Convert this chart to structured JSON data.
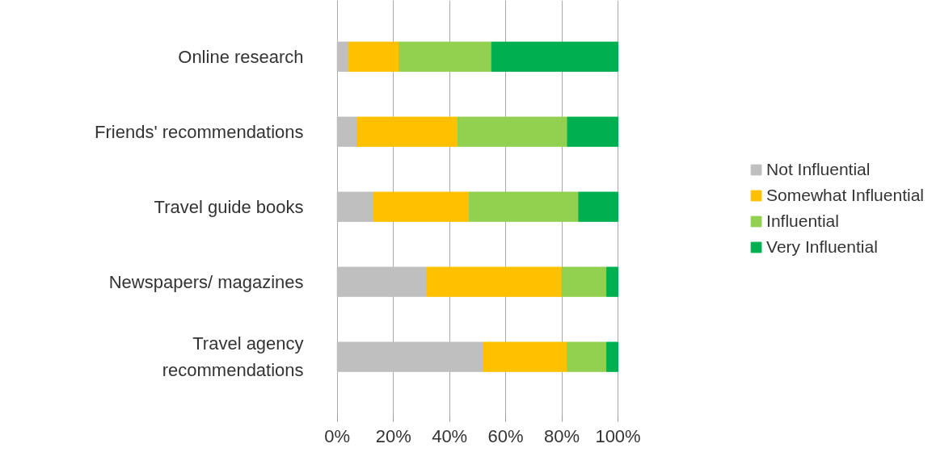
{
  "chart_data": {
    "type": "bar",
    "orientation": "horizontal",
    "stacked": true,
    "categories": [
      "Online research",
      "Friends' recommendations",
      "Travel guide books",
      "Newspapers/ magazines",
      "Travel agency recommendations"
    ],
    "series": [
      {
        "name": "Not Influential",
        "color": "#bfbfbf",
        "values": [
          4,
          7,
          13,
          32,
          52
        ]
      },
      {
        "name": "Somewhat Influential",
        "color": "#ffc000",
        "values": [
          18,
          36,
          34,
          48,
          30
        ]
      },
      {
        "name": "Influential",
        "color": "#92d050",
        "values": [
          33,
          39,
          39,
          16,
          14
        ]
      },
      {
        "name": "Very Influential",
        "color": "#00b050",
        "values": [
          45,
          18,
          14,
          4,
          4
        ]
      }
    ],
    "xlim": [
      0,
      100
    ],
    "xticks": [
      {
        "value": 0,
        "label": "0%"
      },
      {
        "value": 20,
        "label": "20%"
      },
      {
        "value": 40,
        "label": "40%"
      },
      {
        "value": 60,
        "label": "60%"
      },
      {
        "value": 80,
        "label": "80%"
      },
      {
        "value": 100,
        "label": "100%"
      }
    ],
    "grid": "x",
    "legend": "right"
  }
}
